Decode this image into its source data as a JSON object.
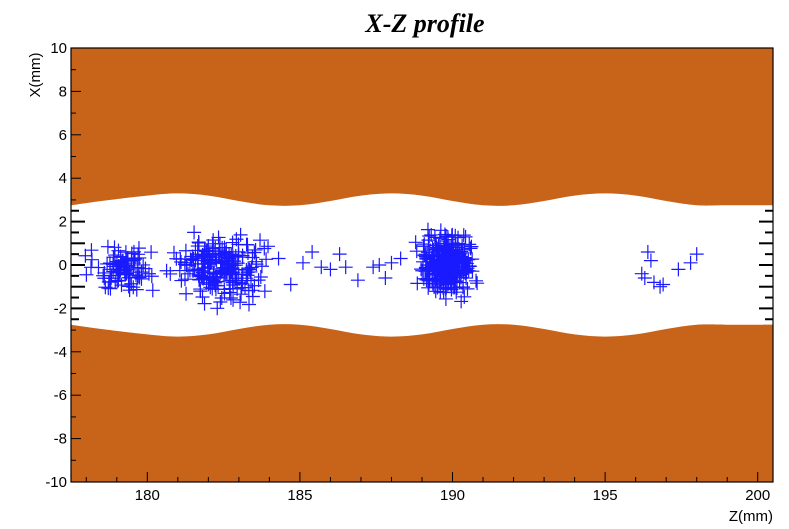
{
  "chart_data": {
    "type": "scatter",
    "title": "X-Z profile",
    "xlabel": "Z(mm)",
    "ylabel": "X(mm)",
    "xlim": [
      177.5,
      200.5
    ],
    "ylim": [
      -10,
      10
    ],
    "x_ticks": [
      180,
      185,
      190,
      195,
      200
    ],
    "y_ticks": [
      -10,
      -8,
      -6,
      -4,
      -2,
      0,
      2,
      4,
      6,
      8,
      10
    ],
    "grid": false,
    "legend": "none",
    "marker": "+",
    "colors": {
      "points": "#1a1aff",
      "wall": "#c8641a",
      "bore": "#ffffff"
    },
    "wall_boundary": {
      "z": [
        177.5,
        178.5,
        180,
        181,
        182,
        183,
        184,
        185,
        186,
        187,
        188,
        189,
        190,
        191,
        192,
        193,
        194,
        195,
        196,
        197,
        198,
        199,
        200.5
      ],
      "upper_x": [
        2.75,
        2.95,
        3.2,
        3.3,
        3.2,
        2.95,
        2.75,
        2.75,
        2.95,
        3.2,
        3.3,
        3.2,
        2.95,
        2.75,
        2.75,
        2.95,
        3.2,
        3.3,
        3.2,
        2.95,
        2.75,
        2.75,
        2.75
      ],
      "lower_x": [
        -2.75,
        -2.95,
        -3.2,
        -3.3,
        -3.2,
        -2.95,
        -2.75,
        -2.75,
        -2.95,
        -3.2,
        -3.3,
        -3.2,
        -2.95,
        -2.75,
        -2.75,
        -2.95,
        -3.2,
        -3.3,
        -3.2,
        -2.95,
        -2.75,
        -2.75,
        -2.75
      ]
    },
    "clusters": [
      {
        "z_range": [
          177.6,
          180.8
        ],
        "x_range": [
          -1.6,
          1.2
        ],
        "count": 95
      },
      {
        "z_range": [
          180.5,
          184.3
        ],
        "x_range": [
          -2.1,
          1.9
        ],
        "count": 230
      },
      {
        "z_range": [
          188.6,
          191.0
        ],
        "x_range": [
          -2.0,
          1.9
        ],
        "count": 320
      }
    ],
    "points": [
      [
        184.3,
        0.3
      ],
      [
        184.7,
        -0.9
      ],
      [
        185.1,
        0.1
      ],
      [
        185.4,
        0.6
      ],
      [
        185.7,
        -0.1
      ],
      [
        186.0,
        -0.2
      ],
      [
        186.3,
        0.5
      ],
      [
        186.5,
        -0.1
      ],
      [
        186.9,
        -0.7
      ],
      [
        187.4,
        -0.1
      ],
      [
        187.6,
        0.0
      ],
      [
        187.8,
        -0.6
      ],
      [
        188.0,
        0.1
      ],
      [
        188.3,
        0.3
      ],
      [
        196.2,
        -0.4
      ],
      [
        196.3,
        -0.6
      ],
      [
        196.4,
        0.6
      ],
      [
        196.5,
        0.2
      ],
      [
        196.6,
        -0.8
      ],
      [
        196.8,
        -1.0
      ],
      [
        196.9,
        -0.9
      ],
      [
        197.4,
        -0.2
      ],
      [
        197.8,
        0.1
      ],
      [
        198.0,
        0.5
      ]
    ]
  }
}
